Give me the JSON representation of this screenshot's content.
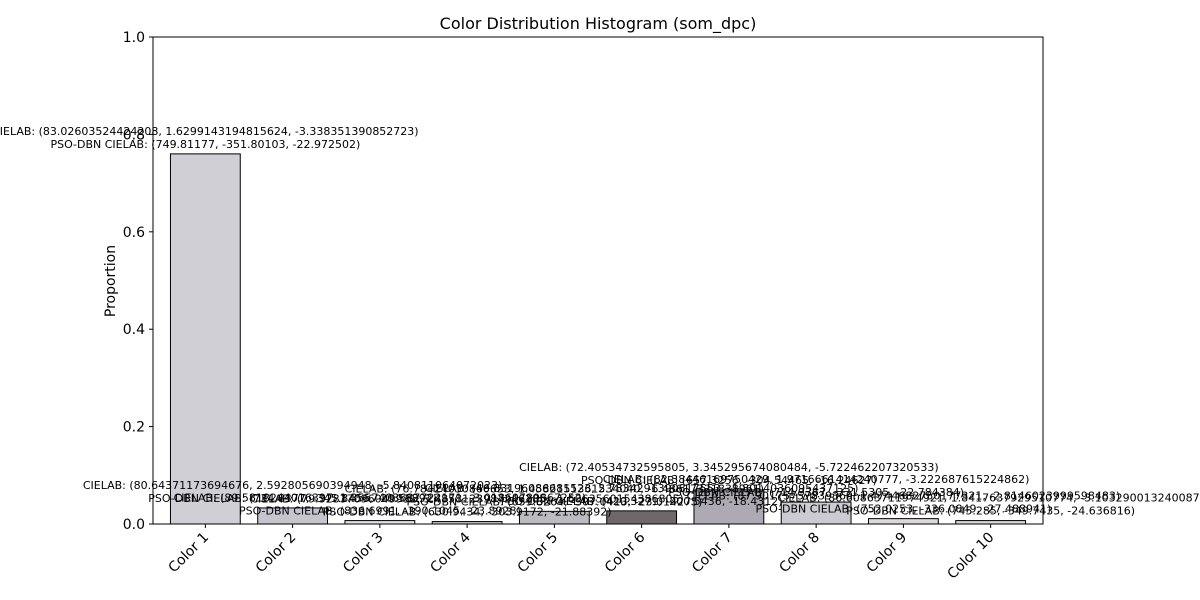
{
  "chart_data": {
    "type": "bar",
    "title": "Color Distribution Histogram (som_dpc)",
    "xlabel": "",
    "ylabel": "Proportion",
    "ylim": [
      0,
      1.0
    ],
    "yticks": [
      "0.0",
      "0.2",
      "0.4",
      "0.6",
      "0.8",
      "1.0"
    ],
    "grid": false,
    "categories": [
      "Color 1",
      "Color 2",
      "Color 3",
      "Color 4",
      "Color 5",
      "Color 6",
      "Color 7",
      "Color 8",
      "Color 9",
      "Color 10"
    ],
    "values": [
      0.76,
      0.033,
      0.007,
      0.005,
      0.026,
      0.027,
      0.07,
      0.045,
      0.011,
      0.007
    ],
    "bar_colors": [
      "#d0cfd6",
      "#c6c4cd",
      "#e2e0e4",
      "#c6c2c4",
      "#bdbbc2",
      "#6f6868",
      "#aeaab3",
      "#cdcbd2",
      "#dcdad9",
      "#d9d7da"
    ],
    "annotations": [
      {
        "cielab": "CIELAB: (83.02603524424208, 1.6299143194815624, -3.338351390852723)",
        "pso": "PSO-DBN CIELAB: (749.81177, -351.80103, -22.972502)"
      },
      {
        "cielab": "CIELAB: (80.64371173694676, 2.592805690394948, -5.840811064072023)",
        "pso": "PSO-DBN CIELAB: (734.8377, -345.8456, -20.58392)"
      },
      {
        "cielab": "CIELAB: (89.5818244016397, 1.3557403687722171, -3.01860789867252)",
        "pso": "PSO-DBN CIELAB: (836.6991, -390.1045, -23.8928)"
      },
      {
        "cielab": "CIELAB: (79.32837096049931, 3.4858123987246285, -1.6063560154386805)",
        "pso": "PSO-DBN CIELAB: (630.9434, -303.9172, -21.88392)"
      },
      {
        "cielab": "CIELAB: (76.78424030860653, 1.4582151361534040, -6.48617321838961)",
        "pso": "PSO-DBN CIELAB: (659.8264, -307.0413, -23.014275)"
      },
      {
        "cielab": "CIELAB: (46.83196086681523, 2.7834291390817553, -1.8014036095437125)",
        "pso": "PSO-DBN CIELAB: (420.3271, -200.5436, -18.4312)"
      },
      {
        "cielab": "CIELAB: (72.40534732595805, 3.345295674080484, -5.722462207320533)",
        "pso": "PSO-DBN CIELAB: (657.3256, -304.54465, -16.24627)"
      },
      {
        "cielab": "CIELAB: (82.38446169750429, 1.9716661414240777, -3.222687615224862)",
        "pso": "PSO-DBN CIELAB: (714.9367, -331.5305, -22.784384)"
      },
      {
        "cielab": "CIELAB: (87.90175757839369, 1.4744682750177321, -2.8146023999598483)",
        "pso": "PSO-DBN CIELAB: (752.0253, -336.0849, -27.488941)"
      },
      {
        "cielab": "CIELAB: (86.60863711974921, 1.8417637929510774, -3.103290013240087)",
        "pso": "PSO-DBN CIELAB: (745.285, -349.7435, -24.636816)"
      }
    ]
  }
}
